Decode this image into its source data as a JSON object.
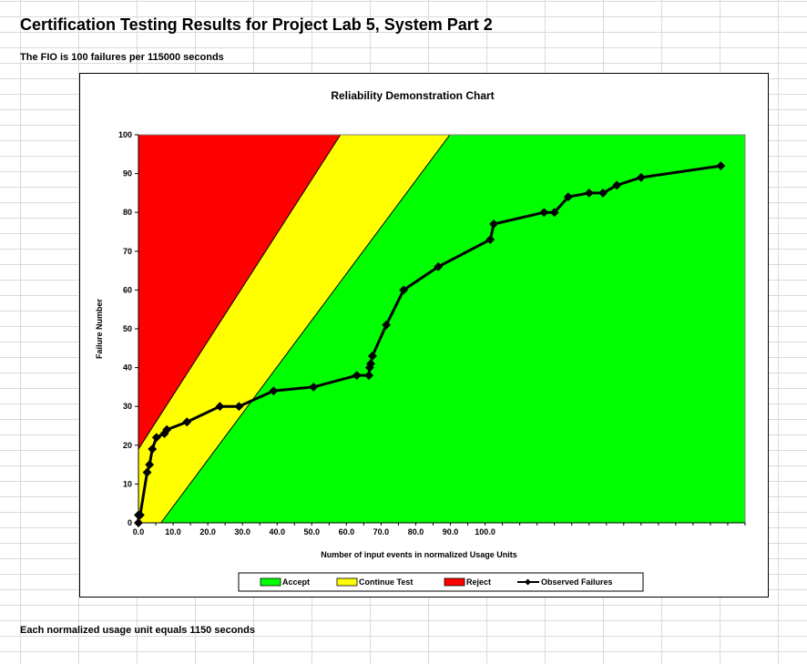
{
  "sheet": {
    "title": "Certification Testing Results for Project Lab 5, System Part 2",
    "fio_line": "The FIO is 100 failures per 115000 seconds",
    "footer": "Each normalized usage unit equals 1150 seconds"
  },
  "chart_data": {
    "type": "line",
    "title": "Reliability Demonstration Chart",
    "xlabel": "Number of input events in normalized Usage Units",
    "ylabel": "Failure Number",
    "xlim": [
      0,
      175
    ],
    "ylim": [
      0,
      100
    ],
    "x_ticks": [
      "0.0",
      "10.0",
      "20.0",
      "30.0",
      "40.0",
      "50.0",
      "60.0",
      "70.0",
      "80.0",
      "90.0",
      "100.0"
    ],
    "y_ticks": [
      "0",
      "10",
      "20",
      "30",
      "40",
      "50",
      "60",
      "70",
      "80",
      "90",
      "100"
    ],
    "colors": {
      "accept": "#00ff00",
      "continue": "#ffff00",
      "reject": "#ff0000",
      "observed": "#000000"
    },
    "regions": {
      "reject_boundary": {
        "intercept": 19,
        "slope": 1.39
      },
      "accept_boundary": {
        "intercept": -7.8,
        "slope": 1.2
      }
    },
    "series": [
      {
        "name": "Observed Failures",
        "x": [
          0,
          0,
          0.5,
          2.5,
          3.2,
          4,
          5.2,
          7.5,
          8.2,
          14,
          23.5,
          29,
          39,
          50.5,
          63,
          66.5,
          66.7,
          67,
          67.5,
          71.5,
          76.5,
          86.5,
          101.5,
          102.5,
          117,
          120,
          124,
          130,
          134,
          138,
          145,
          168
        ],
        "y": [
          0,
          2,
          2,
          13,
          15,
          19,
          22,
          23,
          24,
          26,
          30,
          30,
          34,
          35,
          38,
          38,
          40,
          41,
          43,
          51,
          60,
          66,
          73,
          77,
          80,
          80,
          84,
          85,
          85,
          87,
          89,
          92
        ]
      }
    ],
    "legend": {
      "position": "bottom",
      "items": [
        "Accept",
        "Continue Test",
        "Reject",
        "Observed Failures"
      ]
    }
  }
}
